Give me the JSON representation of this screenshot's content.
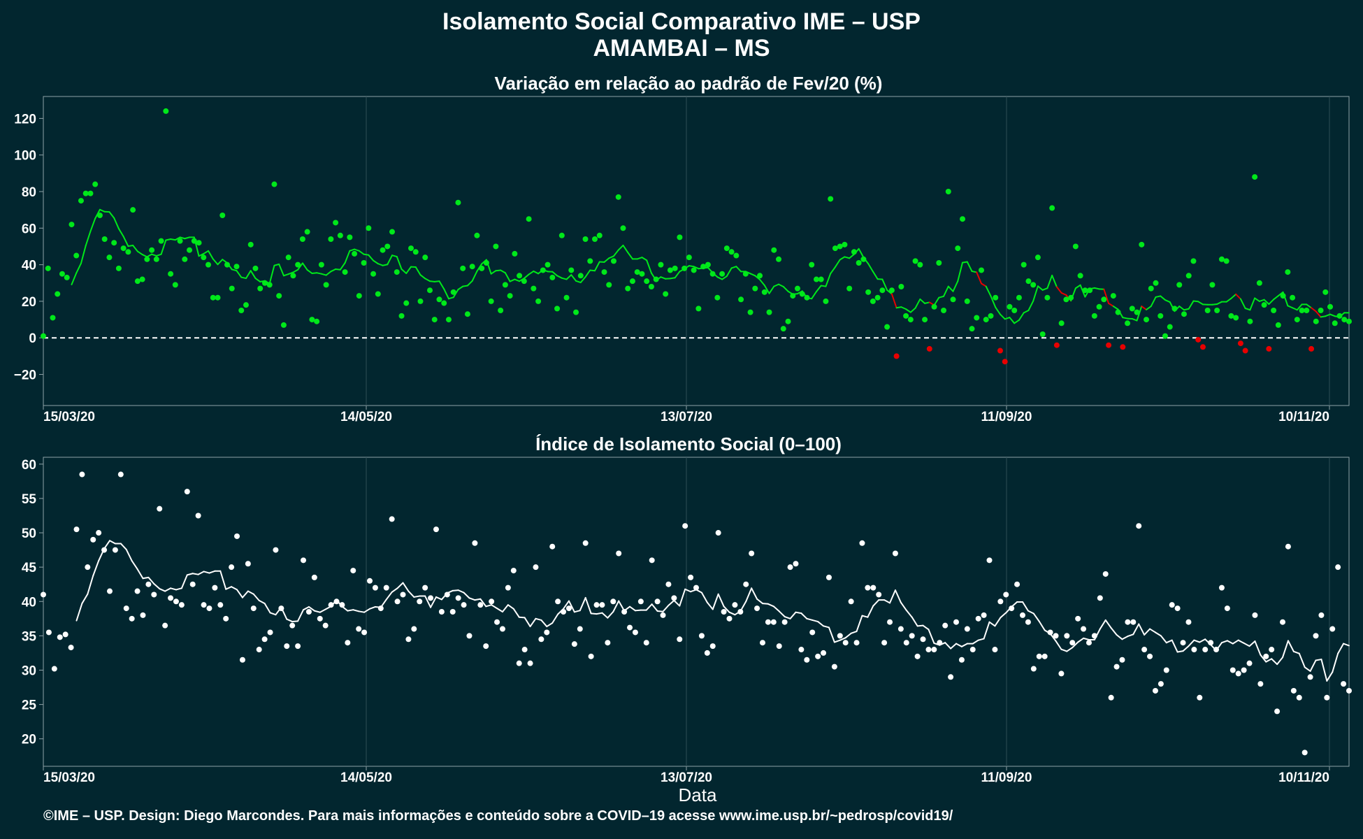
{
  "header": {
    "title": "Isolamento Social Comparativo IME – USP",
    "subtitle": "AMAMBAI – MS"
  },
  "footer": "©IME – USP. Design: Diego Marcondes. Para mais informações e conteúdo sobre a COVID–19 acesse www.ime.usp.br/~pedrosp/covid19/",
  "colors": {
    "background": "#02262f",
    "panel_border": "#8fa2a7",
    "grid": "#2e4e56",
    "positive": "#00e81a",
    "negative": "#e80000",
    "index": "#ffffff"
  },
  "chart_data": [
    {
      "type": "scatter",
      "title": "Variação em relação ao padrão de Fev/20 (%)",
      "x_start_date": "15/03/20",
      "x_end_date": "20/11/20",
      "x_tick_labels": [
        "15/03/20",
        "14/05/20",
        "13/07/20",
        "11/09/20",
        "10/11/20"
      ],
      "ylim": [
        -37,
        132
      ],
      "y_ticks": [
        -20,
        0,
        20,
        40,
        60,
        80,
        100,
        120
      ],
      "y_tick_labels": [
        "−20",
        "0",
        "20",
        "40",
        "60",
        "80",
        "100",
        "120"
      ],
      "reference_line": 0,
      "moving_average_note": "line = 7-day moving average; green when ≥ 0 trend, red segments highlight declines",
      "values": [
        1,
        38,
        11,
        24,
        35,
        33,
        62,
        45,
        75,
        79,
        79,
        84,
        67,
        54,
        44,
        52,
        38,
        49,
        47,
        70,
        31,
        32,
        43,
        48,
        43,
        53,
        124,
        35,
        29,
        53,
        43,
        48,
        53,
        52,
        44,
        40,
        22,
        22,
        67,
        40,
        27,
        39,
        15,
        18,
        51,
        38,
        27,
        30,
        29,
        84,
        23,
        7,
        44,
        34,
        40,
        54,
        58,
        10,
        9,
        40,
        29,
        54,
        63,
        56,
        36,
        55,
        46,
        23,
        41,
        60,
        35,
        24,
        48,
        50,
        58,
        36,
        12,
        19,
        49,
        47,
        20,
        44,
        26,
        10,
        21,
        19,
        10,
        25,
        74,
        38,
        13,
        39,
        56,
        38,
        41,
        20,
        50,
        15,
        29,
        23,
        46,
        34,
        31,
        65,
        27,
        20,
        37,
        40,
        33,
        16,
        56,
        22,
        37,
        14,
        34,
        54,
        42,
        54,
        56,
        36,
        29,
        42,
        77,
        60,
        27,
        31,
        36,
        35,
        31,
        28,
        32,
        40,
        24,
        37,
        38,
        55,
        38,
        44,
        37,
        16,
        39,
        40,
        35,
        22,
        35,
        49,
        47,
        45,
        21,
        35,
        14,
        27,
        34,
        25,
        14,
        48,
        43,
        5,
        9,
        23,
        27,
        24,
        22,
        40,
        32,
        32,
        20,
        76,
        49,
        50,
        51,
        27,
        47,
        41,
        43,
        25,
        20,
        22,
        26,
        6,
        26,
        -10,
        28,
        12,
        10,
        42,
        40,
        10,
        -6,
        17,
        41,
        15,
        80,
        21,
        49,
        65,
        20,
        5,
        11,
        37,
        10,
        12,
        22,
        -7,
        -13,
        17,
        15,
        22,
        40,
        31,
        29,
        44,
        2,
        22,
        71,
        -4,
        8,
        21,
        22,
        50,
        34,
        26,
        26,
        12,
        17,
        21,
        -4,
        23,
        14,
        -5,
        8,
        16,
        14,
        51,
        10,
        27,
        30,
        12,
        1,
        6,
        16,
        29,
        13,
        34,
        42,
        -1,
        -5,
        15,
        29,
        15,
        43,
        42,
        12,
        11,
        -3,
        -7,
        9,
        88,
        30,
        18,
        -6,
        15,
        7,
        23,
        36,
        22,
        10,
        15,
        15,
        -6,
        9,
        15,
        25,
        17,
        8,
        12,
        10,
        9
      ]
    },
    {
      "type": "scatter",
      "title": "Índice de Isolamento Social (0–100)",
      "xlabel": "Data",
      "x_start_date": "15/03/20",
      "x_end_date": "20/11/20",
      "x_tick_labels": [
        "15/03/20",
        "14/05/20",
        "13/07/20",
        "11/09/20",
        "10/11/20"
      ],
      "ylim": [
        16,
        61
      ],
      "y_ticks": [
        20,
        25,
        30,
        35,
        40,
        45,
        50,
        55,
        60
      ],
      "values": [
        41,
        35.5,
        30.2,
        34.8,
        35.2,
        33.3,
        50.5,
        58.5,
        45,
        49,
        50,
        47.5,
        41.5,
        47.5,
        58.5,
        39,
        37.5,
        41.5,
        38,
        42.5,
        41,
        53.5,
        36.5,
        40.5,
        40,
        39.5,
        56,
        42.5,
        52.5,
        39.5,
        39,
        42,
        39.5,
        37.5,
        45,
        49.5,
        31.5,
        45.5,
        39,
        33,
        34.5,
        35.5,
        47.5,
        39,
        33.5,
        36.5,
        33.5,
        46,
        38.5,
        43.5,
        37.5,
        36.5,
        39.5,
        40,
        39.5,
        34,
        44.5,
        36,
        35.5,
        43,
        42,
        39,
        42,
        52,
        40,
        41,
        34.5,
        36,
        40,
        42,
        40.5,
        50.5,
        38.5,
        41,
        38.5,
        40.5,
        39.5,
        35,
        48.5,
        39.5,
        33.5,
        40,
        37,
        36,
        42,
        44.5,
        31,
        33,
        31,
        45,
        34.5,
        35.5,
        48,
        40,
        38.5,
        39,
        33.8,
        36,
        48.5,
        32,
        39.5,
        39.5,
        34,
        40,
        47,
        38.5,
        36.2,
        35.5,
        40,
        34,
        46,
        40,
        38,
        42.5,
        40.5,
        34.5,
        51,
        43.5,
        42,
        35,
        32.5,
        33.5,
        50,
        38.5,
        37.5,
        39.5,
        38.5,
        42.5,
        47,
        39,
        34,
        37,
        37,
        33.5,
        37,
        45,
        45.5,
        33,
        31.5,
        35.5,
        32,
        32.5,
        43.5,
        30.5,
        35,
        34,
        40,
        34,
        48.5,
        42,
        42,
        41,
        34,
        37,
        47,
        36,
        34,
        35,
        32,
        34.5,
        33,
        33,
        34,
        36.5,
        29,
        37,
        31.5,
        36,
        33,
        37.5,
        38,
        46,
        33,
        40,
        41,
        39,
        42.5,
        38,
        37,
        30.2,
        32,
        32,
        35.5,
        35,
        29.5,
        35,
        34,
        37.5,
        36,
        34,
        35,
        40.5,
        44,
        26,
        30.5,
        31.5,
        37,
        37,
        51,
        33,
        32,
        27,
        28,
        30,
        39.5,
        39,
        34,
        37,
        33,
        26,
        33,
        34,
        33,
        42,
        39,
        30,
        29.5,
        30,
        31,
        38,
        28,
        32,
        33,
        24,
        37,
        48,
        27,
        26,
        18,
        29,
        35,
        38,
        26,
        36,
        45,
        28,
        27
      ]
    }
  ]
}
